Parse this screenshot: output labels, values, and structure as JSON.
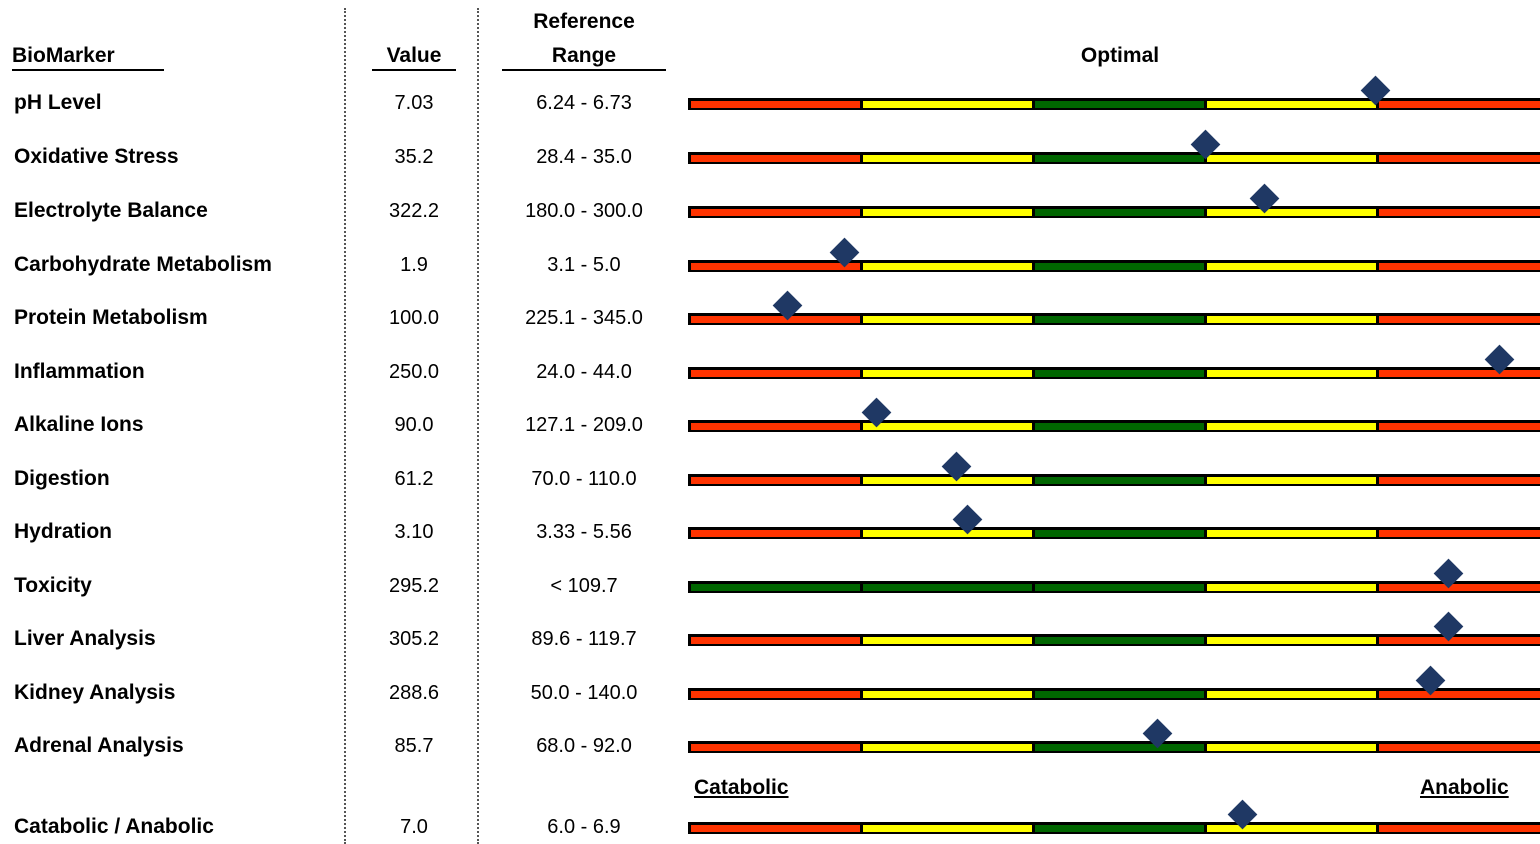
{
  "headers": {
    "biomarker": "BioMarker",
    "value": "Value",
    "reference_line1": "Reference",
    "reference_line2": "Range",
    "optimal": "Optimal"
  },
  "end_labels": {
    "left": "Catabolic",
    "right": "Anabolic"
  },
  "colors": {
    "red": "#ff3300",
    "yellow": "#ffff00",
    "green": "#006600",
    "marker": "#1f3864"
  },
  "chart_data": {
    "type": "table",
    "columns": [
      "BioMarker",
      "Value",
      "Reference Range",
      "Optimal"
    ],
    "segments_default": [
      "red",
      "yellow",
      "green",
      "yellow",
      "red"
    ],
    "rows": [
      {
        "label": "pH Level",
        "value": "7.03",
        "range": "6.24 - 6.73",
        "segments": [
          "red",
          "yellow",
          "green",
          "yellow",
          "red"
        ],
        "marker": 0.807
      },
      {
        "label": "Oxidative Stress",
        "value": "35.2",
        "range": "28.4 - 35.0",
        "segments": [
          "red",
          "yellow",
          "green",
          "yellow",
          "red"
        ],
        "marker": 0.607
      },
      {
        "label": "Electrolyte Balance",
        "value": "322.2",
        "range": "180.0 - 300.0",
        "segments": [
          "red",
          "yellow",
          "green",
          "yellow",
          "red"
        ],
        "marker": 0.677
      },
      {
        "label": "Carbohydrate Metabolism",
        "value": "1.9",
        "range": "3.1 - 5.0",
        "segments": [
          "red",
          "yellow",
          "green",
          "yellow",
          "red"
        ],
        "marker": 0.184
      },
      {
        "label": "Protein Metabolism",
        "value": "100.0",
        "range": "225.1 - 345.0",
        "segments": [
          "red",
          "yellow",
          "green",
          "yellow",
          "red"
        ],
        "marker": 0.117
      },
      {
        "label": "Inflammation",
        "value": "250.0",
        "range": "24.0 - 44.0",
        "segments": [
          "red",
          "yellow",
          "green",
          "yellow",
          "red"
        ],
        "marker": 0.952
      },
      {
        "label": "Alkaline Ions",
        "value": "90.0",
        "range": "127.1 - 209.0",
        "segments": [
          "red",
          "yellow",
          "green",
          "yellow",
          "red"
        ],
        "marker": 0.221
      },
      {
        "label": "Digestion",
        "value": "61.2",
        "range": "70.0 - 110.0",
        "segments": [
          "red",
          "yellow",
          "green",
          "yellow",
          "red"
        ],
        "marker": 0.315
      },
      {
        "label": "Hydration",
        "value": "3.10",
        "range": "3.33 - 5.56",
        "segments": [
          "red",
          "yellow",
          "green",
          "yellow",
          "red"
        ],
        "marker": 0.328
      },
      {
        "label": "Toxicity",
        "value": "295.2",
        "range": "< 109.7",
        "segments": [
          "green",
          "green",
          "green",
          "yellow",
          "red"
        ],
        "marker": 0.893
      },
      {
        "label": "Liver Analysis",
        "value": "305.2",
        "range": "89.6 - 119.7",
        "segments": [
          "red",
          "yellow",
          "green",
          "yellow",
          "red"
        ],
        "marker": 0.893
      },
      {
        "label": "Kidney Analysis",
        "value": "288.6",
        "range": "50.0 - 140.0",
        "segments": [
          "red",
          "yellow",
          "green",
          "yellow",
          "red"
        ],
        "marker": 0.871
      },
      {
        "label": "Adrenal Analysis",
        "value": "85.7",
        "range": "68.0  - 92.0",
        "segments": [
          "red",
          "yellow",
          "green",
          "yellow",
          "red"
        ],
        "marker": 0.551
      },
      {
        "label": "Catabolic / Anabolic",
        "value": "7.0",
        "range": "6.0 - 6.9",
        "segments": [
          "red",
          "yellow",
          "green",
          "yellow",
          "red"
        ],
        "marker": 0.651
      }
    ]
  }
}
